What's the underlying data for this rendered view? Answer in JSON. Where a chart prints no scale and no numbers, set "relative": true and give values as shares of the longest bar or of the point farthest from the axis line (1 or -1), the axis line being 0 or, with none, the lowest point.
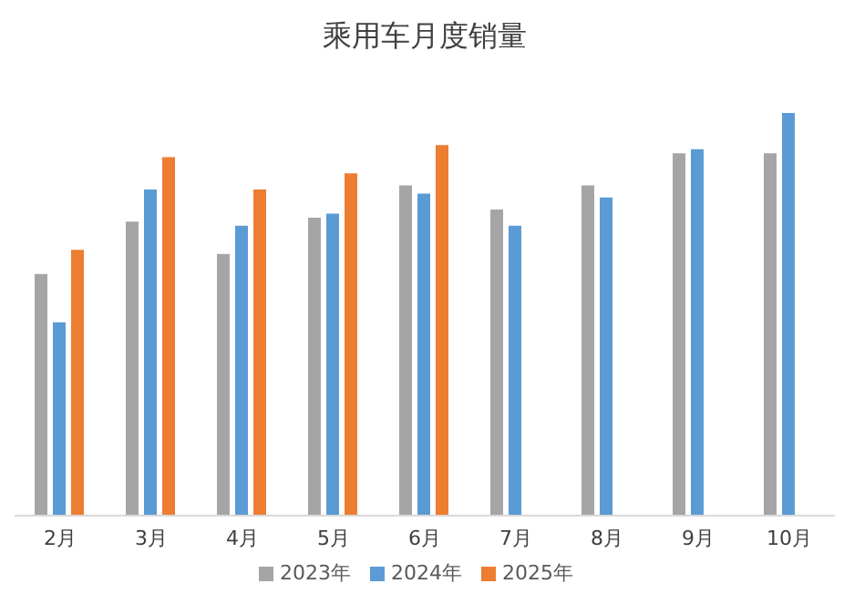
{
  "chart_data": {
    "type": "bar",
    "title": "乘用车月度销量",
    "relative": true,
    "legend": "bottom",
    "categories": [
      "2月",
      "3月",
      "4月",
      "5月",
      "6月",
      "7月",
      "8月",
      "9月",
      "10月"
    ],
    "series": [
      {
        "name": "2023年",
        "color": "#a5a5a5",
        "values": [
          0.6,
          0.73,
          0.65,
          0.74,
          0.82,
          0.76,
          0.82,
          0.9,
          0.9
        ]
      },
      {
        "name": "2024年",
        "color": "#5b9bd5",
        "values": [
          0.48,
          0.81,
          0.72,
          0.75,
          0.8,
          0.72,
          0.79,
          0.91,
          1
        ]
      },
      {
        "name": "2025年",
        "color": "#ed7d31",
        "values": [
          0.66,
          0.89,
          0.81,
          0.85,
          0.92,
          null,
          null,
          null,
          null
        ]
      }
    ]
  }
}
